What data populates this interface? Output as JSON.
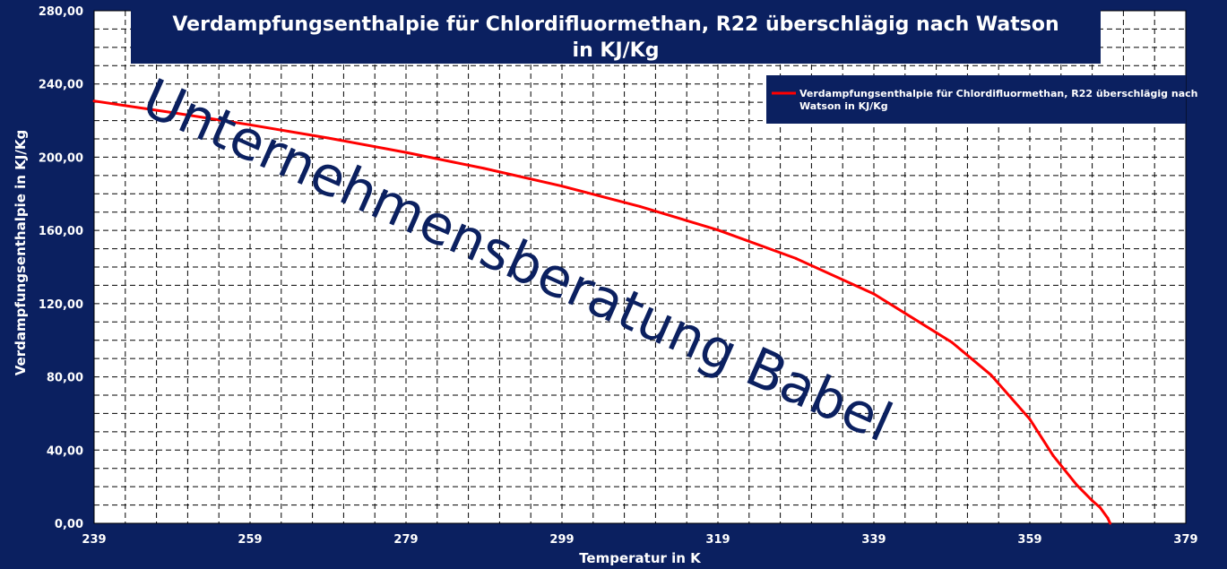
{
  "chart_data": {
    "type": "line",
    "title_line1": "Verdampfungsenthalpie für Chlordifluormethan, R22 überschläg​ig nach Watson",
    "title_line2": "in KJ/Kg",
    "xlabel": "Temperatur in  K",
    "ylabel": "Verdampfungsenthalpie  in KJ/Kg",
    "xlim": [
      239,
      379
    ],
    "ylim": [
      0,
      280
    ],
    "x_ticks": [
      "239",
      "259",
      "279",
      "299",
      "319",
      "339",
      "359",
      "379"
    ],
    "y_ticks": [
      "0,00",
      "40,00",
      "80,00",
      "120,00",
      "160,00",
      "200,00",
      "240,00",
      "280,00"
    ],
    "grid": true,
    "legend_position": "top-right",
    "series": [
      {
        "name": "Verdampfungsenthalpie für Chlordifluormethan, R22 überschlägig nach Watson in KJ/Kg",
        "color": "#ff0000",
        "x": [
          239,
          249,
          259,
          269,
          279,
          289,
          299,
          309,
          319,
          329,
          339,
          349,
          354,
          359,
          362,
          365,
          367,
          368,
          369,
          369.3
        ],
        "y": [
          230.7,
          224.4,
          217.7,
          210.5,
          202.6,
          193.9,
          184.2,
          173.1,
          160.2,
          144.7,
          125.3,
          98.9,
          81.1,
          56.9,
          36.9,
          21.0,
          12.4,
          8.7,
          2.8,
          0
        ]
      }
    ]
  },
  "watermark": "Unternehmensberatung Babel",
  "colors": {
    "background": "#0b2060",
    "plot_area": "#ffffff",
    "grid": "#000000",
    "line": "#ff0000"
  }
}
